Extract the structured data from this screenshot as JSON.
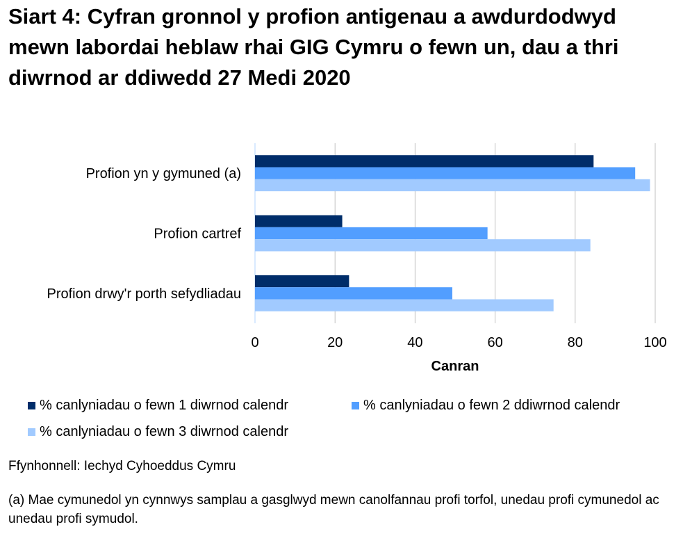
{
  "chart_data": {
    "type": "bar",
    "orientation": "horizontal",
    "title": "Siart 4: Cyfran gronnol y profion antigenau a awdurdodwyd mewn labordai heblaw rhai GIG Cymru o fewn un, dau a thri diwrnod ar ddiwedd 27 Medi 2020",
    "categories": [
      "Profion yn y gymuned (a)",
      "Profion cartref",
      "Profion drwy'r porth sefydliadau"
    ],
    "series": [
      {
        "name": "% canlyniadau o fewn 1 diwrnod calendr",
        "color": "#002d6a",
        "values": [
          84.6,
          21.8,
          23.5
        ]
      },
      {
        "name": "% canlyniadau o fewn 2 ddiwrnod calendr",
        "color": "#529eff",
        "values": [
          95.0,
          58.1,
          49.3
        ]
      },
      {
        "name": "% canlyniadau o fewn 3 diwrnod calendr",
        "color": "#a1caff",
        "values": [
          98.7,
          83.8,
          74.6
        ]
      }
    ],
    "xlabel": "Canran",
    "ylabel": "",
    "xlim": [
      0,
      100
    ],
    "xticks": [
      "0",
      "20",
      "40",
      "60",
      "80",
      "100"
    ],
    "grid": true,
    "legend": "bottom"
  },
  "source": "Ffynhonnell: Iechyd Cyhoeddus Cymru",
  "footnote": "(a) Mae cymunedol yn cynnwys samplau a gasglwyd mewn canolfannau profi torfol, unedau profi cymunedol ac unedau profi symudol."
}
